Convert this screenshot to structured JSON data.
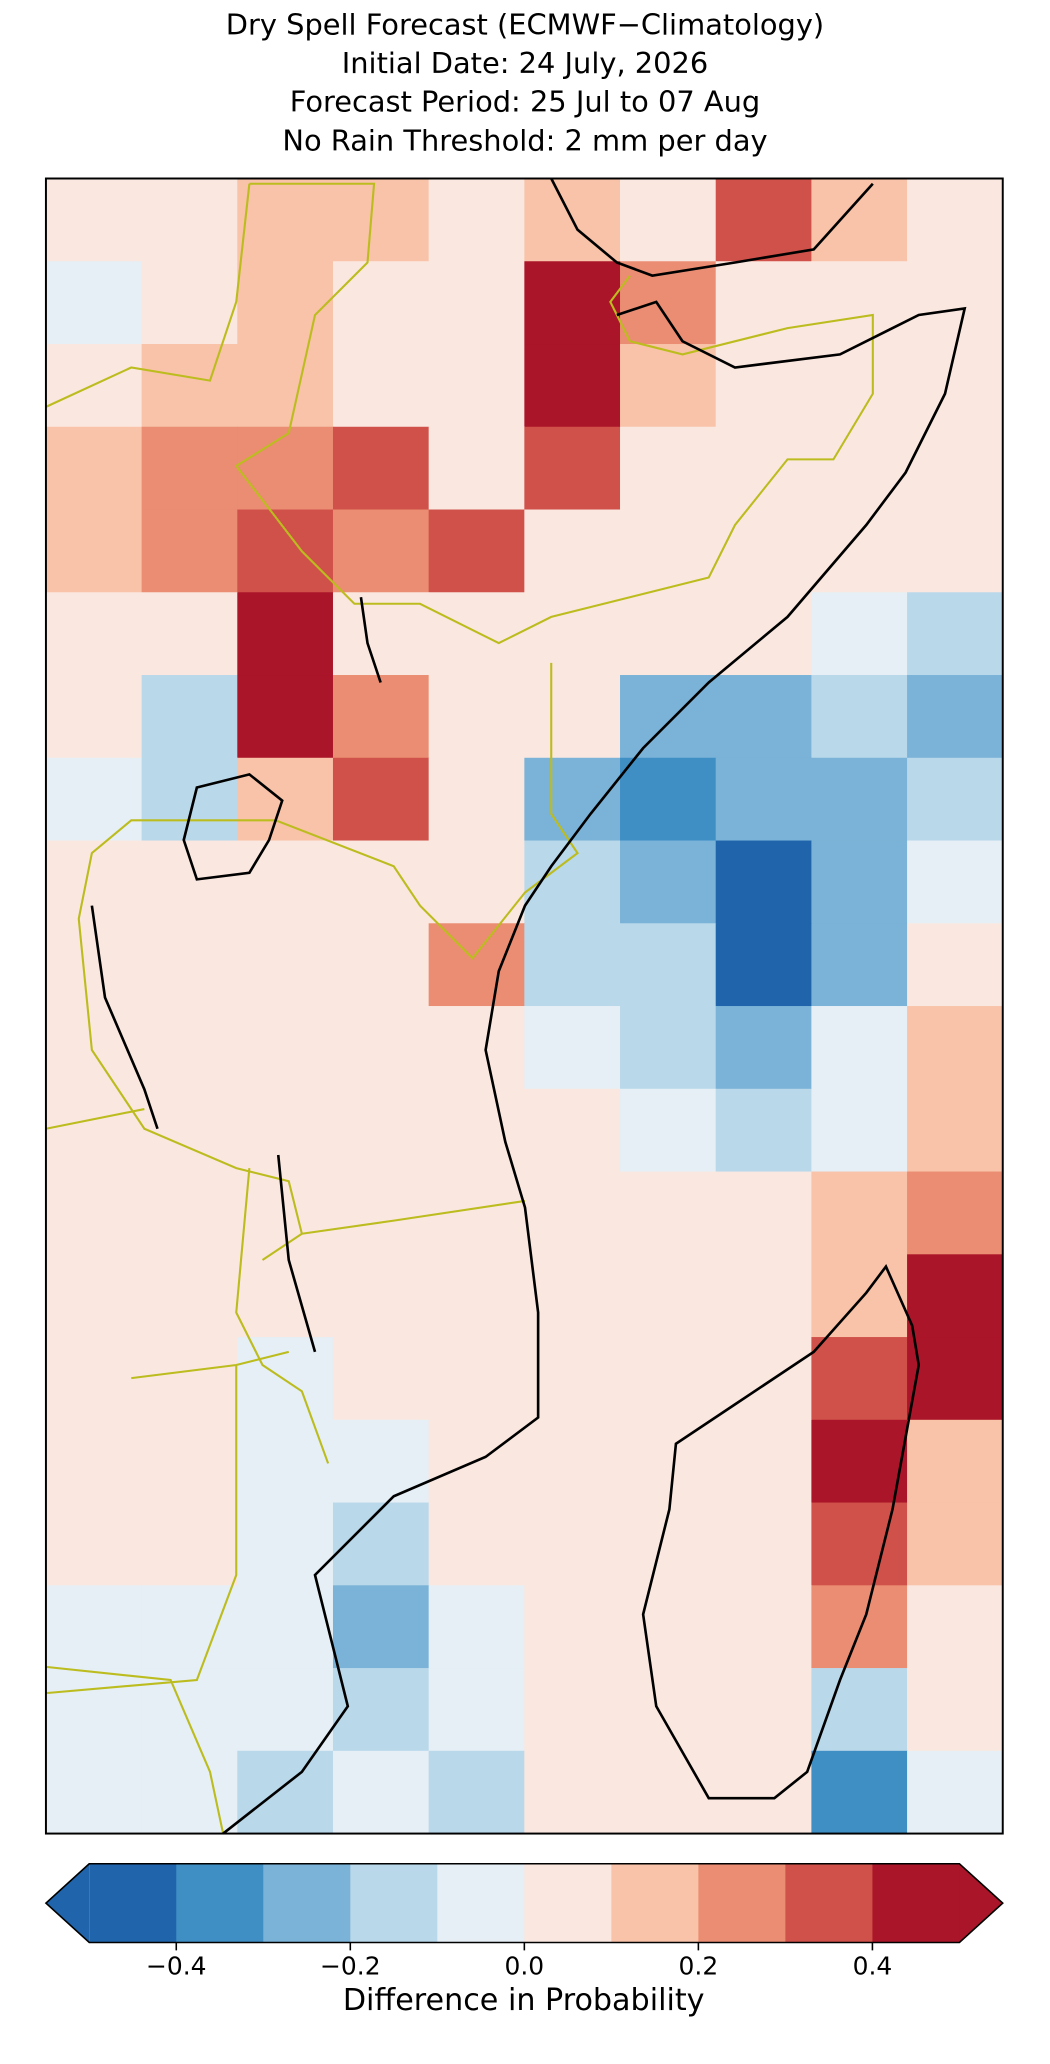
{
  "title": [
    "Dry Spell Forecast (ECMWF−Climatology)",
    "Initial Date: 24 July, 2026",
    "Forecast Period: 25 Jul to 07 Aug",
    "No Rain Threshold: 2 mm per day"
  ],
  "map": {
    "grid": [
      [
        0.05,
        0.05,
        0.15,
        0.15,
        0.05,
        0.15,
        0.05,
        0.35,
        0.15,
        0.05
      ],
      [
        -0.05,
        0.05,
        0.15,
        0.05,
        0.05,
        0.45,
        0.25,
        0.05,
        0.05,
        0.05
      ],
      [
        0.05,
        0.15,
        0.15,
        0.05,
        0.05,
        0.45,
        0.15,
        0.05,
        0.05,
        0.05
      ],
      [
        0.15,
        0.25,
        0.25,
        0.35,
        0.05,
        0.35,
        0.05,
        0.05,
        0.05,
        0.05
      ],
      [
        0.15,
        0.25,
        0.35,
        0.25,
        0.35,
        0.05,
        0.05,
        0.05,
        0.05,
        0.05
      ],
      [
        0.05,
        0.05,
        0.45,
        0.05,
        0.05,
        0.05,
        0.05,
        0.05,
        -0.05,
        -0.15
      ],
      [
        0.05,
        -0.15,
        0.45,
        0.25,
        0.05,
        0.05,
        -0.25,
        -0.25,
        -0.15,
        -0.25
      ],
      [
        -0.05,
        -0.15,
        0.15,
        0.35,
        0.05,
        -0.25,
        -0.35,
        -0.25,
        -0.25,
        -0.15
      ],
      [
        0.05,
        0.05,
        0.05,
        0.05,
        0.05,
        -0.15,
        -0.25,
        -0.45,
        -0.25,
        -0.05
      ],
      [
        0.05,
        0.05,
        0.05,
        0.05,
        0.25,
        -0.15,
        -0.15,
        -0.45,
        -0.25,
        0.05
      ],
      [
        0.05,
        0.05,
        0.05,
        0.05,
        0.05,
        -0.05,
        -0.15,
        -0.25,
        -0.05,
        0.15
      ],
      [
        0.05,
        0.05,
        0.05,
        0.05,
        0.05,
        0.05,
        -0.05,
        -0.15,
        -0.05,
        0.15
      ],
      [
        0.05,
        0.05,
        0.05,
        0.05,
        0.05,
        0.05,
        0.05,
        0.05,
        0.15,
        0.25
      ],
      [
        0.05,
        0.05,
        0.05,
        0.05,
        0.05,
        0.05,
        0.05,
        0.05,
        0.15,
        0.45
      ],
      [
        0.05,
        0.05,
        -0.05,
        0.05,
        0.05,
        0.05,
        0.05,
        0.05,
        0.35,
        0.45
      ],
      [
        0.05,
        0.05,
        -0.05,
        -0.05,
        0.05,
        0.05,
        0.05,
        0.05,
        0.45,
        0.15
      ],
      [
        0.05,
        0.05,
        -0.05,
        -0.15,
        0.05,
        0.05,
        0.05,
        0.05,
        0.35,
        0.15
      ],
      [
        -0.05,
        -0.05,
        -0.05,
        -0.25,
        -0.05,
        0.05,
        0.05,
        0.05,
        0.25,
        0.05
      ],
      [
        -0.05,
        -0.05,
        -0.05,
        -0.15,
        -0.05,
        0.05,
        0.05,
        0.05,
        -0.15,
        0.05
      ],
      [
        -0.05,
        -0.05,
        -0.15,
        -0.05,
        -0.15,
        0.05,
        0.05,
        0.05,
        -0.35,
        -0.05
      ]
    ]
  },
  "colorbar": {
    "boundaries": [
      -0.5,
      -0.4,
      -0.3,
      -0.2,
      -0.1,
      0,
      0.1,
      0.2,
      0.3,
      0.4,
      0.5
    ],
    "colors": [
      "#2064ab",
      "#3f8fc5",
      "#7ab3d7",
      "#b9d8ea",
      "#e5eff5",
      "#fae8e0",
      "#f8c3a8",
      "#ea8d72",
      "#cf5149",
      "#ab1529"
    ],
    "extend": "both",
    "ticks": [
      {
        "value": -0.4,
        "label": "−0.4"
      },
      {
        "value": -0.2,
        "label": "−0.2"
      },
      {
        "value": 0,
        "label": "0.0"
      },
      0.2,
      0.4
    ],
    "label": "Difference in Probability"
  }
}
